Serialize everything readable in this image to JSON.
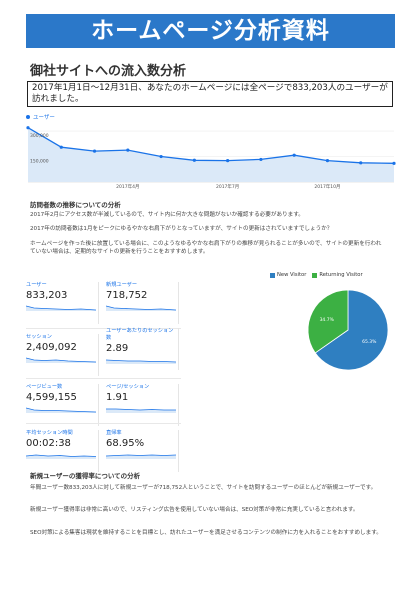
{
  "header": {
    "title": "ホームページ分析資料",
    "subtitle": "御社サイトへの流入数分析",
    "summary": "2017年1月1日〜12月31日、あなたのホームページには全ページで833,203人のユーザーが訪れました。"
  },
  "line_chart_legend": "ユーザー",
  "visitor_trend": {
    "heading": "訪問者数の推移についての分析",
    "para1": "2017年2月にアクセス数が半減しているので、サイト内に何か大きな問題がないか確認する必要があります。",
    "para2": "2017年の訪問者数は1月をピークにゆるやかな右肩下がりとなっていますが、サイトの更新はされていますでしょうか？",
    "para3": "ホームページを作った後に放置している場合に、このようなゆるやかな右肩下がりの推移が見られることが多いので、サイトの更新を行われていない場合は、定期的なサイトの更新を行うことをおすすめします。"
  },
  "metrics": [
    {
      "label": "ユーザー",
      "value": "833,203"
    },
    {
      "label": "新規ユーザー",
      "value": "718,752"
    },
    {
      "label": "セッション",
      "value": "2,409,092"
    },
    {
      "label": "ユーザーあたりのセッション数",
      "value": "2.89"
    },
    {
      "label": "ページビュー数",
      "value": "4,599,155"
    },
    {
      "label": "ページ/セッション",
      "value": "1.91"
    },
    {
      "label": "平均セッション時間",
      "value": "00:02:38"
    },
    {
      "label": "直帰率",
      "value": "68.95%"
    }
  ],
  "new_users": {
    "heading": "新規ユーザーの獲得率についての分析",
    "para1": "年間ユーザー数833,203人に対して新規ユーザーが718,752人ということで、サイトを訪問するユーザーのほとんどが新規ユーザーです。",
    "para2": "新規ユーザー獲得率は非常に高いので、リスティング広告を使用していない場合は、SEO対策が非常に充実していると言われます。",
    "para3": "SEO対策による集客は現状を維持することを目標とし、訪れたユーザーを満足させるコンテンツの制作に力を入れることをおすすめします。"
  },
  "chart_data": [
    {
      "type": "line",
      "series": [
        {
          "name": "ユーザー",
          "values": [
            320000,
            205000,
            182000,
            188000,
            150000,
            128000,
            126000,
            133000,
            158000,
            126000,
            113000,
            110000
          ]
        }
      ],
      "x": [
        "2017-01",
        "2017-02",
        "2017-03",
        "2017-04",
        "2017-05",
        "2017-06",
        "2017-07",
        "2017-08",
        "2017-09",
        "2017-10",
        "2017-11",
        "2017-12"
      ],
      "ytick_labels": [
        "300,000",
        "150,000"
      ],
      "xtick_labels": [
        "2017年4月",
        "2017年7月",
        "2017年10月"
      ],
      "ylim": [
        0,
        330000
      ],
      "color": "#1a73e8"
    },
    {
      "type": "pie",
      "labels": [
        "New Visitor",
        "Returning Visitor"
      ],
      "values": [
        65.3,
        34.7
      ],
      "slice_labels": [
        "65.3%",
        "34.7%"
      ],
      "colors": [
        "#2f7fc1",
        "#3cb043"
      ],
      "legend": "top"
    }
  ]
}
